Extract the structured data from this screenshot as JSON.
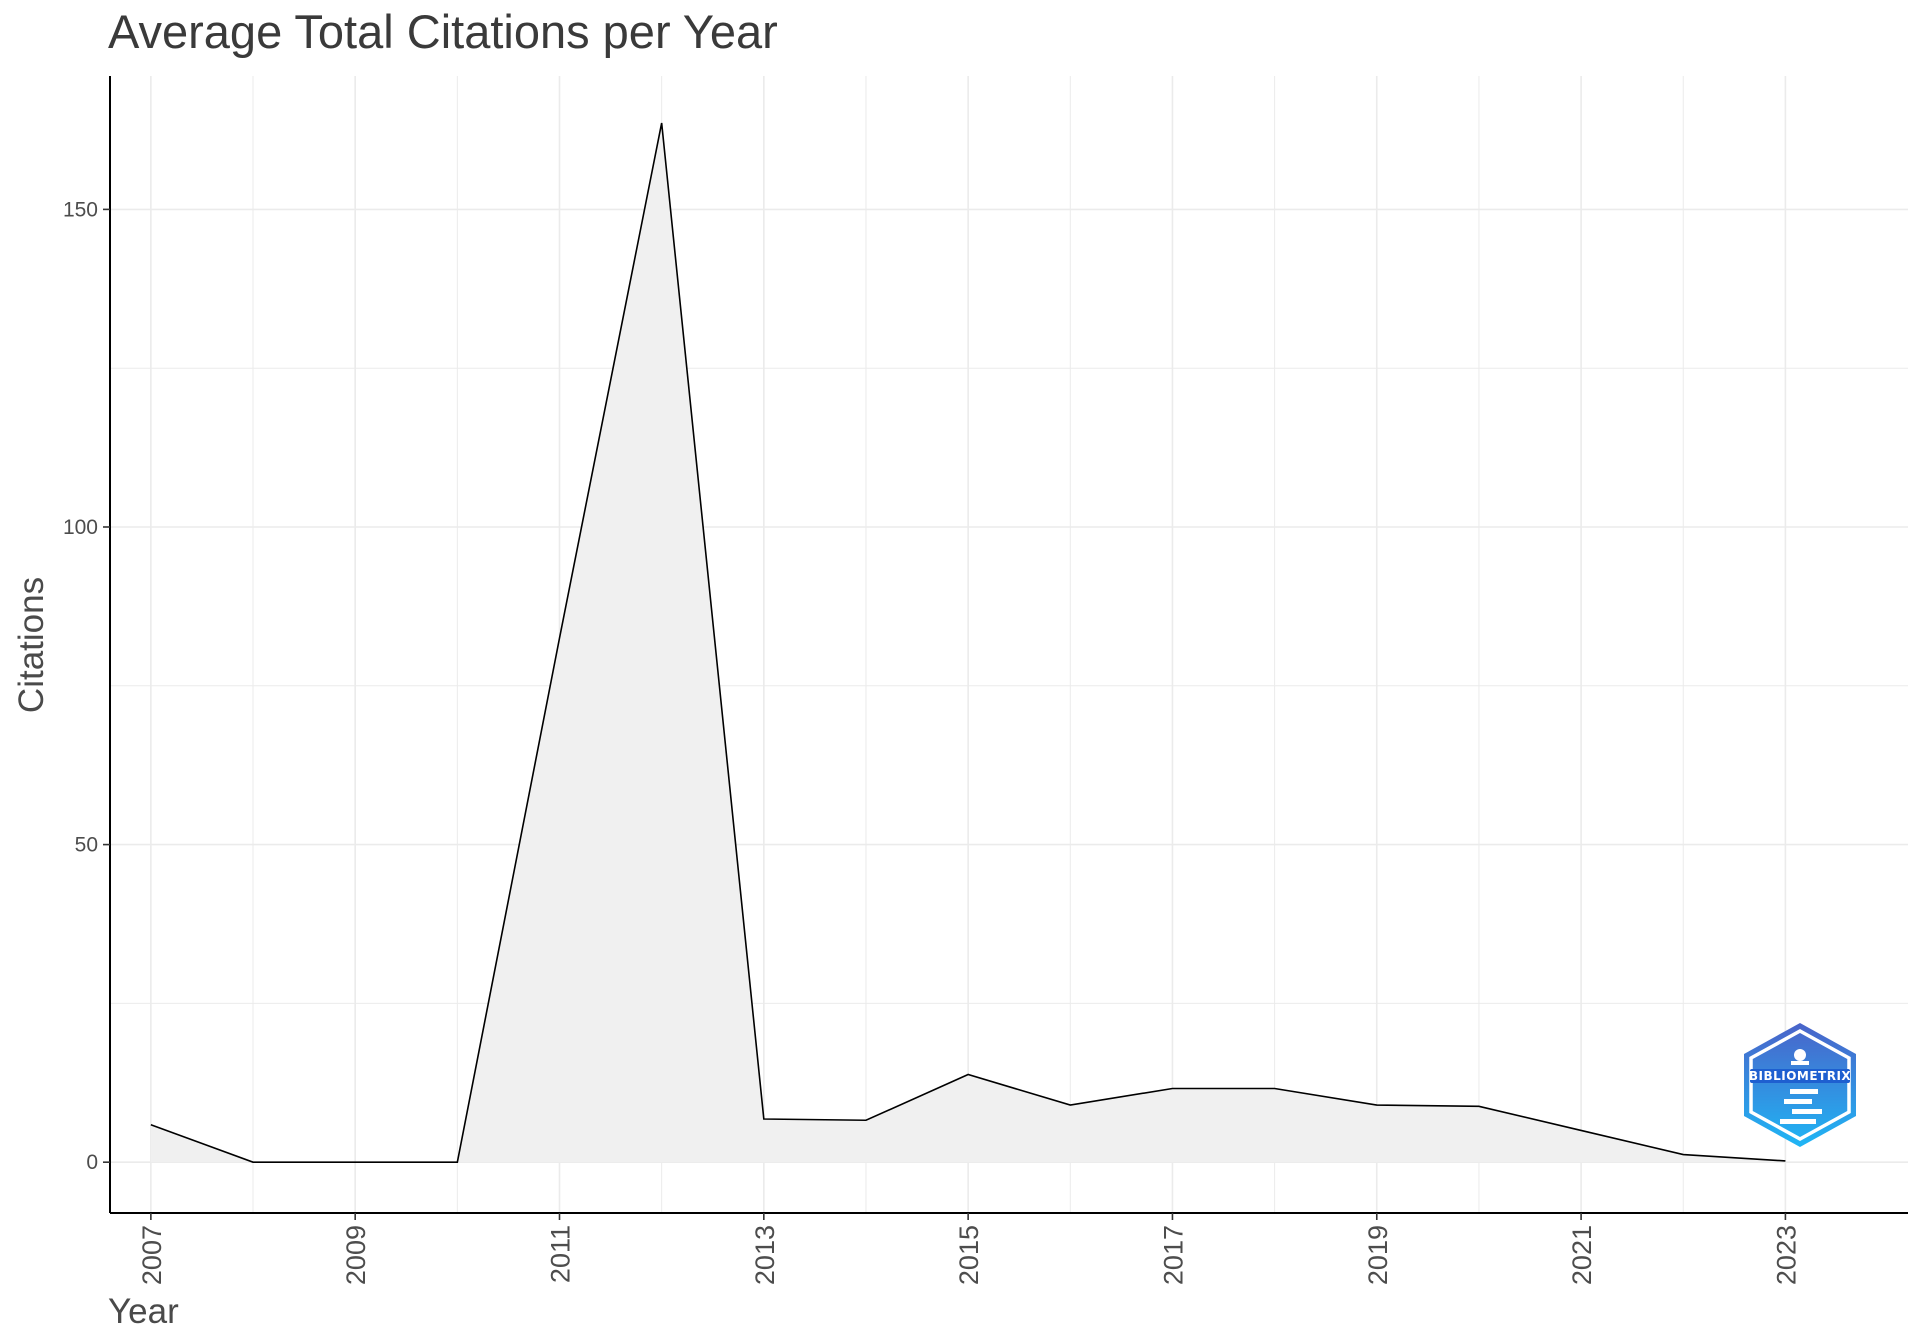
{
  "chart_data": {
    "type": "area",
    "title": "Average Total Citations per Year",
    "xlabel": "Year",
    "ylabel": "Citations",
    "x": [
      2007,
      2008,
      2009,
      2010,
      2011,
      2012,
      2013,
      2014,
      2015,
      2016,
      2017,
      2018,
      2019,
      2020,
      2021,
      2022,
      2023
    ],
    "values": [
      5.9,
      0,
      0,
      0,
      82.5,
      163.6,
      6.8,
      6.6,
      13.8,
      9.0,
      11.6,
      11.6,
      9.0,
      8.8,
      5.0,
      1.2,
      0.2
    ],
    "xlim": [
      2006.6,
      2024.2
    ],
    "ylim": [
      -8,
      171
    ],
    "x_tick_labels": [
      "2007",
      "2009",
      "2011",
      "2013",
      "2015",
      "2017",
      "2019",
      "2021",
      "2023"
    ],
    "y_tick_labels": [
      "0",
      "50",
      "100",
      "150"
    ],
    "x_tick_label_rotation": "vertical",
    "grid": true,
    "line_color": "#000000",
    "fill_color": "#f0f0f0",
    "grid_color": "#ebebeb"
  },
  "logo": {
    "text": "BIBLIOMETRIX",
    "icon": "bibliometrix-lighthouse-logo",
    "colors": [
      "#4a63c9",
      "#1fb6f5"
    ]
  }
}
